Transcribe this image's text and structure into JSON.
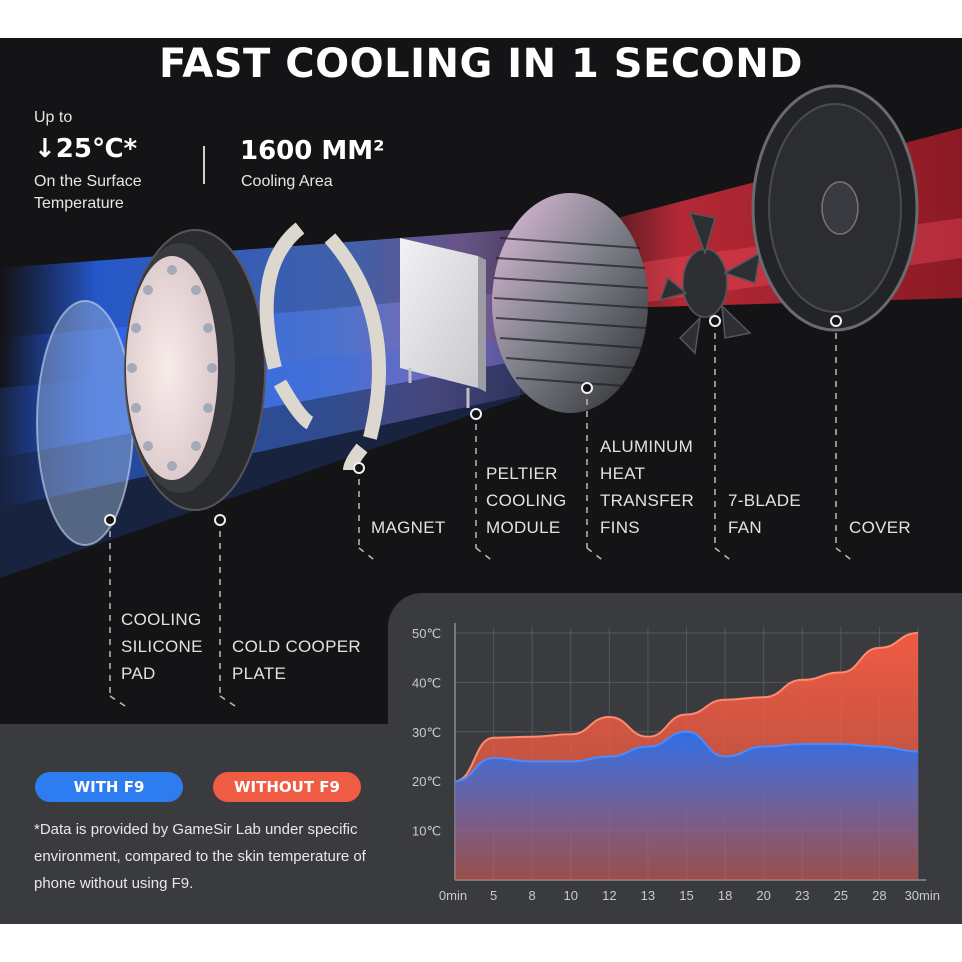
{
  "title": "FAST COOLING IN 1 SECOND",
  "stats": {
    "temp_prefix": "Up to",
    "temp_value": "↓25℃*",
    "temp_caption_1": "On the Surface",
    "temp_caption_2": "Temperature",
    "area_value": "1600 MM²",
    "area_caption": "Cooling Area"
  },
  "components": {
    "silicone_pad": [
      "COOLING",
      "SILICONE",
      "PAD"
    ],
    "copper_plate": [
      "COLD COOPER",
      "PLATE"
    ],
    "magnet": [
      "MAGNET"
    ],
    "peltier": [
      "PELTIER",
      "COOLING",
      "MODULE"
    ],
    "fins": [
      "ALUMINUM",
      "HEAT",
      "TRANSFER",
      "FINS"
    ],
    "fan": [
      "7-BLADE",
      "FAN"
    ],
    "cover": [
      "COVER"
    ]
  },
  "legend": {
    "with_label": "WITH F9",
    "without_label": "WITHOUT F9"
  },
  "footnote": "*Data is provided by GameSir Lab under specific environment, compared to the skin temperature of phone without using F9.",
  "colors": {
    "with": "#2d7cf0",
    "without": "#ef5b43",
    "background": "#141416",
    "panel": "#3a3b3e"
  },
  "chart_data": {
    "type": "area",
    "title": "",
    "xlabel": "",
    "ylabel": "",
    "x_ticks": [
      "0min",
      "5",
      "8",
      "10",
      "12",
      "13",
      "15",
      "18",
      "20",
      "23",
      "25",
      "28",
      "30min"
    ],
    "y_ticks": [
      "50℃",
      "40℃",
      "30℃",
      "20℃",
      "10℃"
    ],
    "ylim": [
      0,
      50
    ],
    "grid": true,
    "series": [
      {
        "name": "WITHOUT F9",
        "color": "#ef5b43",
        "values": [
          20,
          28.8,
          29,
          29.5,
          33,
          29,
          33.5,
          36.5,
          37,
          40.5,
          42,
          47,
          50
        ]
      },
      {
        "name": "WITH F9",
        "color": "#2d7cf0",
        "values": [
          20,
          24.7,
          24,
          24,
          25,
          27,
          30,
          25,
          27,
          27.5,
          27.5,
          27,
          26
        ]
      }
    ]
  }
}
